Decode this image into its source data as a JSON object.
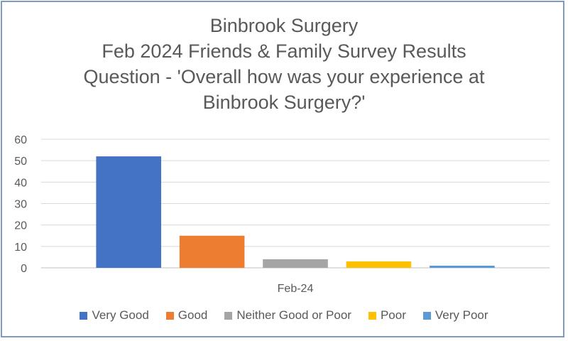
{
  "chart_data": {
    "type": "bar",
    "title": [
      "Binbrook Surgery",
      "Feb 2024 Friends & Family Survey Results",
      "Question - 'Overall how was your experience at",
      "Binbrook Surgery?'"
    ],
    "categories": [
      "Feb-24"
    ],
    "series": [
      {
        "name": "Very Good",
        "values": [
          52
        ],
        "color": "#4472c4"
      },
      {
        "name": "Good",
        "values": [
          15
        ],
        "color": "#ed7d31"
      },
      {
        "name": "Neither Good or Poor",
        "values": [
          4
        ],
        "color": "#a5a5a5"
      },
      {
        "name": "Poor",
        "values": [
          3
        ],
        "color": "#ffc000"
      },
      {
        "name": "Very Poor",
        "values": [
          1
        ],
        "color": "#5b9bd5"
      }
    ],
    "ylim": [
      0,
      60
    ],
    "yticks": [
      0,
      10,
      20,
      30,
      40,
      50,
      60
    ],
    "grid": true,
    "legend_position": "bottom"
  }
}
